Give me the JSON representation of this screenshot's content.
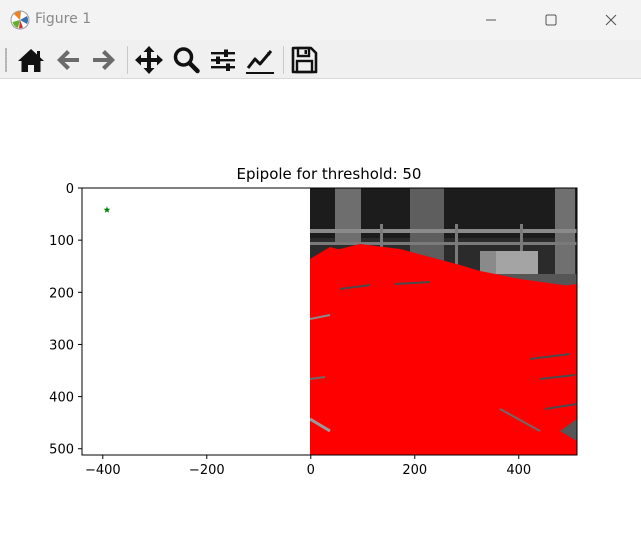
{
  "window": {
    "title": "Figure 1"
  },
  "toolbar": {
    "buttons": [
      {
        "name": "home",
        "icon": "home-icon"
      },
      {
        "name": "back",
        "icon": "arrow-left-icon"
      },
      {
        "name": "forward",
        "icon": "arrow-right-icon"
      },
      {
        "name": "pan",
        "icon": "move-icon"
      },
      {
        "name": "zoom",
        "icon": "magnifier-icon"
      },
      {
        "name": "configure-subplots",
        "icon": "sliders-icon"
      },
      {
        "name": "edit-axis",
        "icon": "line-chart-icon"
      },
      {
        "name": "save",
        "icon": "floppy-disk-icon"
      }
    ]
  },
  "chart_data": {
    "type": "scatter",
    "title": "Epipole for threshold: 50",
    "xlabel": "",
    "ylabel": "",
    "xlim": [
      -440,
      512
    ],
    "ylim": [
      512,
      0
    ],
    "y_inverted": true,
    "x_ticks": [
      "−400",
      "−200",
      "0",
      "200",
      "400"
    ],
    "x_tick_values": [
      -400,
      -200,
      0,
      200,
      400
    ],
    "y_ticks": [
      "0",
      "100",
      "200",
      "300",
      "400",
      "500"
    ],
    "y_tick_values": [
      0,
      100,
      200,
      300,
      400,
      500
    ],
    "grid": false,
    "image_extent": {
      "x": [
        0,
        512
      ],
      "y": [
        0,
        512
      ]
    },
    "points": [
      {
        "x": -392,
        "y": 42,
        "marker": "star",
        "color": "#008000"
      }
    ],
    "overlay_color": "#ff0000"
  },
  "colors": {
    "titlebar": "#f3f3f3",
    "toolbar": "#f0f0f0",
    "epipole": "#008000",
    "lines": "#ff0000"
  }
}
